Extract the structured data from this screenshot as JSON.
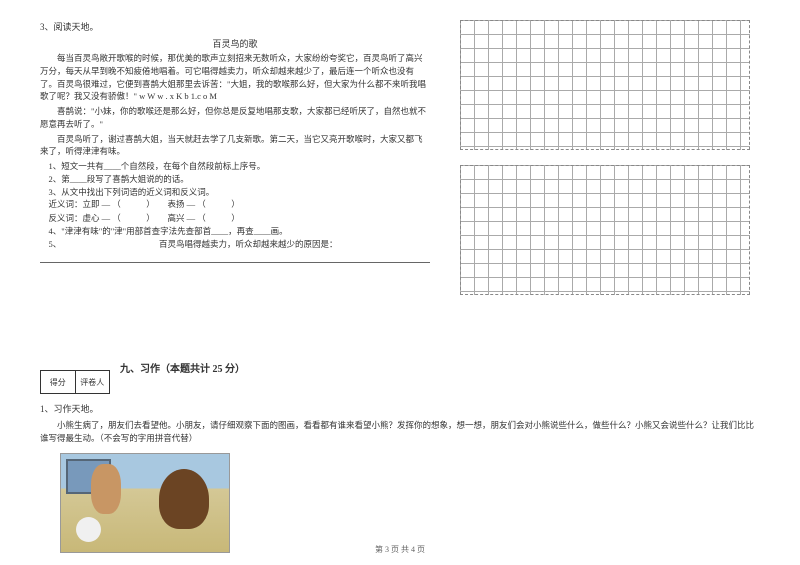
{
  "reading": {
    "num": "3、阅读天地。",
    "title": "百灵鸟的歌",
    "p1": "每当百灵鸟敞开歌喉的时候，那优美的歌声立刻招来无数听众，大家纷纷夸奖它，百灵鸟听了高兴万分，每天从早到晚不知疲倦地唱着。可它唱得越卖力，听众却越来越少了，最后连一个听众也没有了。百灵鸟很难过，它便到喜鹊大姐那里去诉苦：\"大姐，我的歌喉那么好，但大家为什么都不来听我唱歌了呢？我又没有骄傲！\" w  W w . x K  b  1.c o M",
    "p2": "喜鹊说：\"小妹，你的歌喉还是那么好，但你总是反复地唱那支歌，大家都已经听厌了，自然也就不愿意再去听了。\"",
    "p3": "百灵鸟听了，谢过喜鹊大姐，当天就赶去学了几支新歌。第二天，当它又亮开歌喉时，大家又都飞来了，听得津津有味。",
    "q1": "1、短文一共有____个自然段，在每个自然段前标上序号。",
    "q2": "2、第____段写了喜鹊大姐说的的话。",
    "q3": "3、从文中找出下列词语的近义词和反义词。",
    "syn_label": "近义词：立即 — （　　　）　　表扬 — （　　　）",
    "ant_label": "反义词：虚心 — （　　　）　　高兴 — （　　　）",
    "q4": "4、\"津津有味\"的\"津\"用部首查字法先查部首____，再查____画。",
    "q5": "5、　　　　　　　　　　　　百灵鸟唱得越卖力，听众却越来越少的原因是："
  },
  "scorebox": {
    "score": "得分",
    "judge": "评卷人"
  },
  "section9": {
    "title": "九、习作（本题共计 25 分）",
    "num": "1、习作天地。",
    "content": "小熊生病了，朋友们去看望他。小朋友，请仔细观察下面的图画，看看都有谁来看望小熊？发挥你的想象，想一想，朋友们会对小熊说些什么，做些什么？小熊又会说些什么？让我们比比谁写得最生动。（不会写的字用拼音代替）"
  },
  "footer": "第 3 页 共 4 页",
  "colors": {
    "text": "#333333",
    "bg": "#ffffff",
    "grid": "#aaaaaa"
  }
}
